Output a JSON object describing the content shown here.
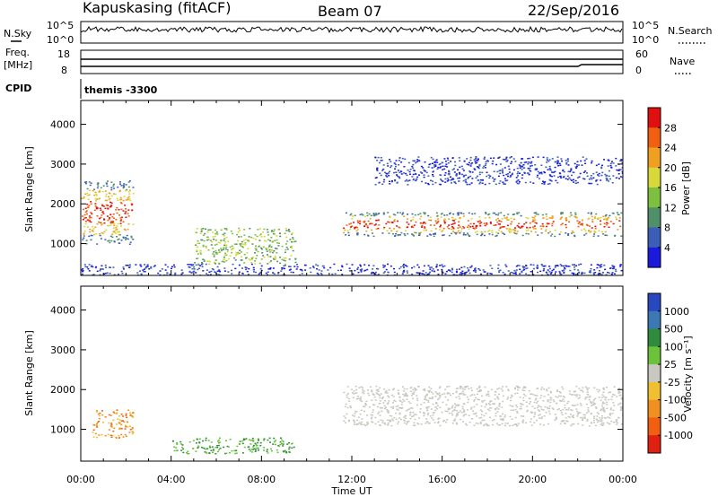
{
  "header": {
    "station": "Kapuskasing (fitACF)",
    "beam": "Beam 07",
    "date": "22/Sep/2016"
  },
  "strips": {
    "nsky_label": "N.Sky",
    "nsky_ticks": [
      "10^5",
      "10^0"
    ],
    "nsearch_label": "N.Search",
    "nsearch_ticks": [
      "10^5",
      "10^0"
    ],
    "freq_label": "Freq.",
    "freq_unit": "[MHz]",
    "freq_ticks": [
      "18",
      "8"
    ],
    "nave_label": "Nave",
    "nave_ticks": [
      "60",
      "0"
    ],
    "cpid_label": "CPID",
    "cpid_value": "themis -3300"
  },
  "chart_data": [
    {
      "type": "heatmap",
      "name": "power",
      "ylabel": "Slant Range [km]",
      "xlabel": "Time UT",
      "x_ticks": [
        "00:00",
        "04:00",
        "08:00",
        "12:00",
        "16:00",
        "20:00",
        "00:00"
      ],
      "x_range_hours": [
        0,
        24
      ],
      "y_ticks": [
        1000,
        2000,
        3000,
        4000
      ],
      "ylim": [
        200,
        4600
      ],
      "colorbar": {
        "label": "Power [dB]",
        "ticks": [
          "28",
          "24",
          "20",
          "16",
          "12",
          "8",
          "4"
        ],
        "colors": [
          "#1a1adc",
          "#3b5fb8",
          "#4f8f6a",
          "#7dbf3e",
          "#d8d83a",
          "#f0a020",
          "#f06010",
          "#e01010"
        ]
      },
      "regions": [
        {
          "name": "near-range band",
          "t": [
            0.0,
            24.0
          ],
          "range_km": [
            200,
            500
          ],
          "level": "low"
        },
        {
          "name": "early echo",
          "t": [
            0.0,
            2.3
          ],
          "range_km": [
            1000,
            2600
          ],
          "level": "high"
        },
        {
          "name": "main evening band",
          "t": [
            11.6,
            24.0
          ],
          "range_km": [
            1200,
            1800
          ],
          "level": "high"
        },
        {
          "name": "upper weak band",
          "t": [
            13.0,
            24.0
          ],
          "range_km": [
            2500,
            3200
          ],
          "level": "low"
        },
        {
          "name": "morning patches",
          "t": [
            5.0,
            9.5
          ],
          "range_km": [
            500,
            1400
          ],
          "level": "mid"
        }
      ]
    },
    {
      "type": "heatmap",
      "name": "velocity",
      "ylabel": "Slant Range [km]",
      "xlabel": "Time UT",
      "x_ticks": [
        "00:00",
        "04:00",
        "08:00",
        "12:00",
        "16:00",
        "20:00",
        "00:00"
      ],
      "x_range_hours": [
        0,
        24
      ],
      "y_ticks": [
        1000,
        2000,
        3000,
        4000
      ],
      "ylim": [
        200,
        4600
      ],
      "colorbar": {
        "label": "Velocity [m s⁻¹]",
        "ticks": [
          "1000",
          "500",
          "100",
          "25",
          "-25",
          "-100",
          "-500",
          "-1000"
        ],
        "colors": [
          "#2848c0",
          "#3c78b4",
          "#2e8c3c",
          "#6cc23a",
          "#c8c8c0",
          "#f0c030",
          "#f09020",
          "#f06010",
          "#e02010"
        ]
      },
      "regions": [
        {
          "name": "early echo",
          "t": [
            0.5,
            2.3
          ],
          "range_km": [
            800,
            1500
          ],
          "level": "-100"
        },
        {
          "name": "ground scatter",
          "t": [
            11.6,
            24.0
          ],
          "range_km": [
            1100,
            2100
          ],
          "level": "0"
        },
        {
          "name": "morning band",
          "t": [
            4.0,
            9.5
          ],
          "range_km": [
            400,
            800
          ],
          "level": "100"
        }
      ]
    }
  ],
  "colors": {
    "background": "#ffffff",
    "axes": "#000000",
    "ground_scatter": "#c8c8c0"
  }
}
